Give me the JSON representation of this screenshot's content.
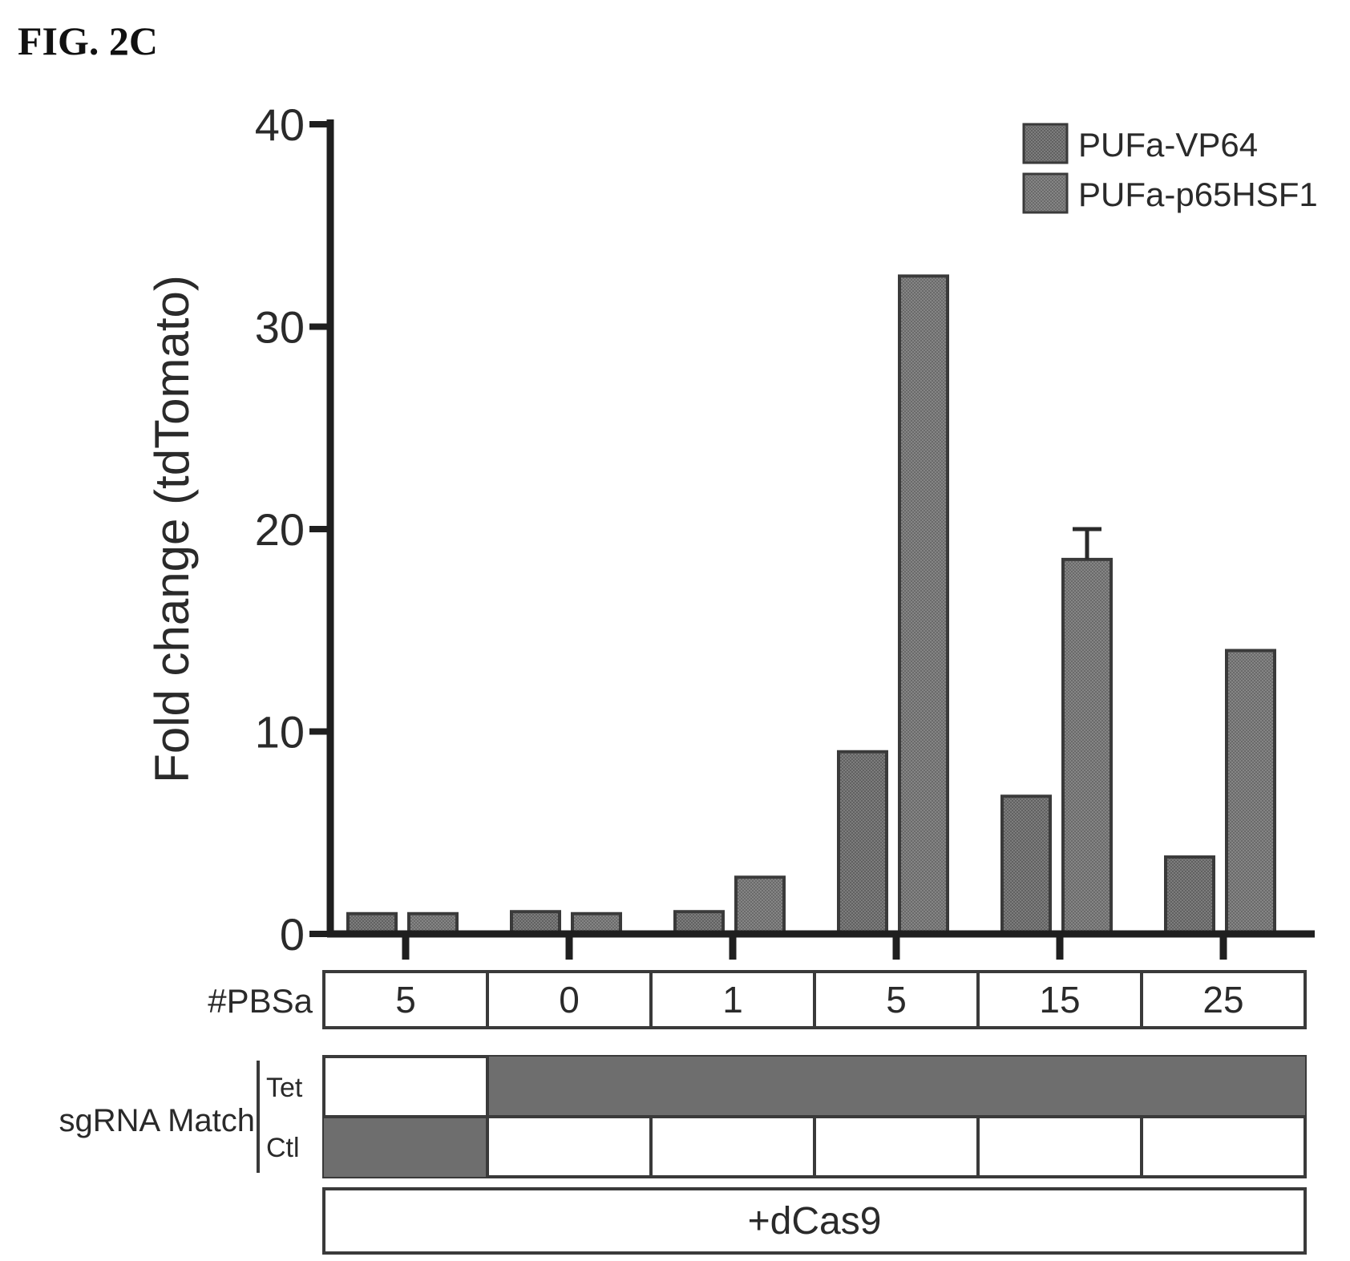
{
  "figure_label": "FIG. 2C",
  "colors": {
    "bar_vp64": "#6a6a6a",
    "bar_p65hsf1": "#7d7d7d",
    "axis": "#1f1f1f",
    "text": "#2a2a2a",
    "cell_fill": "#6e6e6e"
  },
  "chart_data": {
    "type": "bar",
    "ylabel": "Fold change (tdTomato)",
    "ylim": [
      0,
      40
    ],
    "yticks": [
      "0",
      "10",
      "20",
      "30",
      "40"
    ],
    "categories": [
      "5",
      "0",
      "1",
      "5",
      "15",
      "25"
    ],
    "series": [
      {
        "name": "PUFa-VP64",
        "values": [
          1.0,
          1.1,
          1.1,
          9.0,
          6.8,
          3.8
        ],
        "errors": [
          0.1,
          0.1,
          0.1,
          0.3,
          0.1,
          0.1
        ]
      },
      {
        "name": "PUFa-p65HSF1",
        "values": [
          1.0,
          1.0,
          2.8,
          32.5,
          18.5,
          14.0
        ],
        "errors": [
          0.1,
          0.1,
          0.1,
          0.2,
          1.5,
          0.3
        ]
      }
    ],
    "legend_position": "top-right",
    "grid": false
  },
  "table": {
    "pbsa_label": "#PBSa",
    "sgrna_label": "sgRNA Match",
    "tet_label": "Tet",
    "ctl_label": "Ctl",
    "tet_match": [
      false,
      true,
      true,
      true,
      true,
      true
    ],
    "ctl_match": [
      true,
      false,
      false,
      false,
      false,
      false
    ],
    "dcas9_label": "+dCas9"
  }
}
